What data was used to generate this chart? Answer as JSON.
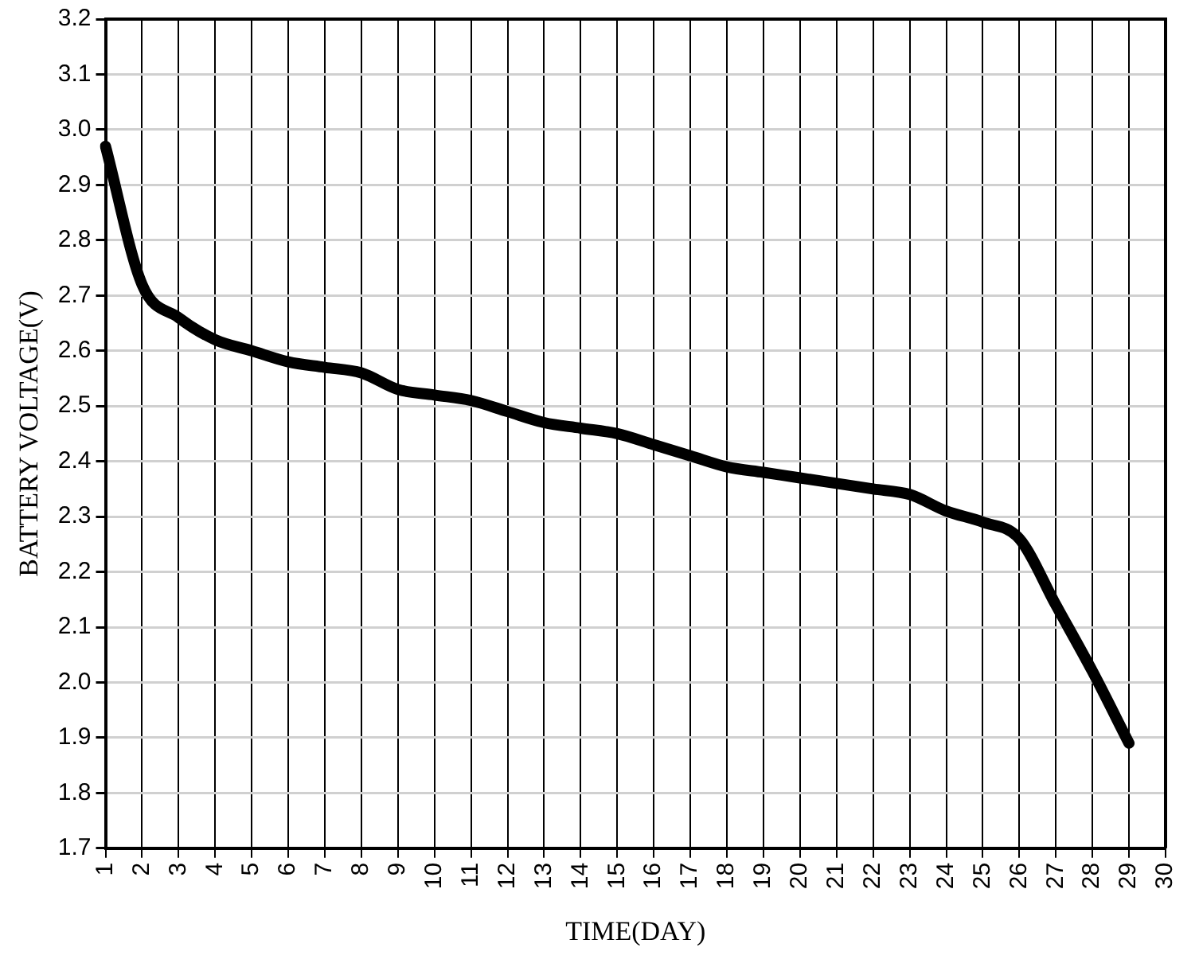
{
  "chart_data": {
    "type": "line",
    "xlabel": "TIME(DAY)",
    "ylabel": "BATTERY VOLTAGE(V)",
    "categories": [
      "1",
      "2",
      "3",
      "4",
      "5",
      "6",
      "7",
      "8",
      "9",
      "10",
      "11",
      "12",
      "13",
      "14",
      "15",
      "16",
      "17",
      "18",
      "19",
      "20",
      "21",
      "22",
      "23",
      "24",
      "25",
      "26",
      "27",
      "28",
      "29",
      "30"
    ],
    "series": [
      {
        "color": "#000000",
        "values": [
          2.97,
          2.72,
          2.66,
          2.62,
          2.6,
          2.58,
          2.57,
          2.56,
          2.53,
          2.52,
          2.51,
          2.49,
          2.47,
          2.46,
          2.45,
          2.43,
          2.41,
          2.39,
          2.38,
          2.37,
          2.36,
          2.35,
          2.34,
          2.31,
          2.29,
          2.26,
          2.14,
          2.02,
          1.89,
          null
        ]
      }
    ],
    "ylim": [
      1.7,
      3.2
    ],
    "yticks": [
      1.7,
      1.8,
      1.9,
      {
        "value": 2,
        "label": "2.0"
      },
      2.1,
      2.2,
      2.3,
      2.4,
      2.5,
      2.6,
      2.7,
      2.8,
      2.9,
      {
        "value": 3,
        "label": "3.0"
      },
      3.1,
      3.2
    ],
    "grid": true,
    "legend": false,
    "marker": "none",
    "line_style": "solid"
  }
}
